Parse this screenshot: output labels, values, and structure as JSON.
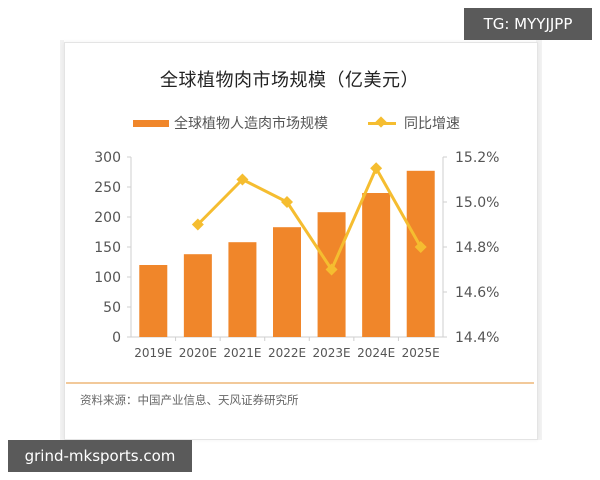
{
  "watermarks": {
    "top_right": "TG: MYYJJPP",
    "bottom_left": "grind-mksports.com"
  },
  "colors": {
    "bar": "#f0862a",
    "line": "#f5bd30",
    "divider": "#f2c99a"
  },
  "chart_data": {
    "type": "bar",
    "title": "全球植物肉市场规模（亿美元）",
    "categories": [
      "2019E",
      "2020E",
      "2021E",
      "2022E",
      "2023E",
      "2024E",
      "2025E"
    ],
    "series": [
      {
        "name": "全球植物人造肉市场规模",
        "type": "bar",
        "axis": "left",
        "values": [
          120,
          138,
          158,
          183,
          208,
          240,
          277
        ]
      },
      {
        "name": "同比增速",
        "type": "line",
        "axis": "right",
        "unit": "%",
        "values": [
          null,
          14.9,
          15.1,
          15.0,
          14.7,
          15.15,
          14.8
        ]
      }
    ],
    "left_axis": {
      "ylim": [
        0,
        300
      ],
      "ticks": [
        "0",
        "50",
        "100",
        "150",
        "200",
        "250",
        "300"
      ]
    },
    "right_axis": {
      "ylim": [
        14.4,
        15.2
      ],
      "ticks": [
        "14.4%",
        "14.6%",
        "14.8%",
        "15.0%",
        "15.2%"
      ]
    },
    "xlabel": "",
    "ylabel": "",
    "legend_position": "top",
    "grid": false,
    "source": "资料来源：中国产业信息、天风证券研究所"
  }
}
